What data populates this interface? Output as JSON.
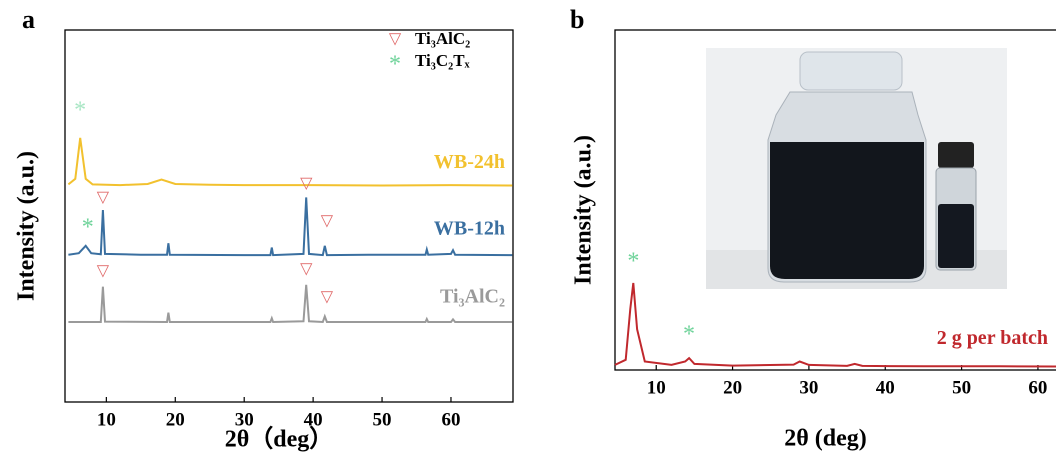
{
  "chart_data": [
    {
      "type": "line",
      "panel": "a",
      "ylabel": "Intensity (a.u.)",
      "xlabel": "2θ（deg）",
      "xlim": [
        4,
        69
      ],
      "ylim": [
        0,
        100
      ],
      "xticks": [
        10,
        20,
        30,
        40,
        50,
        60
      ],
      "legend": [
        {
          "symbol": "▽",
          "label": "Ti₃AlC₂",
          "color": "#e06a6a"
        },
        {
          "symbol": "*",
          "label": "Ti₃C₂Tₓ",
          "color": "#6fd39a"
        }
      ],
      "series": [
        {
          "name": "WB-24h",
          "color": "#f2c12e",
          "x": [
            4.5,
            5.5,
            6.2,
            7,
            8,
            12,
            16,
            18,
            20,
            25,
            30,
            40,
            50,
            60,
            68.9
          ],
          "values": [
            58.5,
            60,
            71,
            60,
            58.5,
            58.3,
            58.6,
            59.8,
            58.6,
            58.4,
            58.3,
            58.3,
            58.2,
            58.3,
            58.2
          ]
        },
        {
          "name": "WB-12h",
          "color": "#3a6fa0",
          "x": [
            4.5,
            6,
            7,
            7.8,
            9.2,
            9.5,
            9.8,
            15,
            18.8,
            19,
            19.2,
            30,
            33.8,
            34,
            34.2,
            38.6,
            39,
            39.4,
            41.4,
            41.7,
            42,
            48,
            56.3,
            56.5,
            56.7,
            60,
            60.3,
            60.6,
            68.9
          ],
          "values": [
            39.6,
            40,
            42,
            40,
            39.7,
            51.6,
            39.8,
            39.6,
            39.6,
            42.7,
            39.6,
            39.5,
            39.5,
            41.5,
            39.5,
            39.8,
            55,
            39.8,
            39.5,
            42,
            39.5,
            39.6,
            39.6,
            41,
            39.6,
            39.8,
            40.8,
            39.6,
            39.5
          ]
        },
        {
          "name": "Ti₃AlC₂",
          "color": "#9a9a9a",
          "x": [
            4.5,
            9.2,
            9.5,
            9.8,
            18.8,
            19,
            19.2,
            33.8,
            34,
            34.2,
            38.6,
            39,
            39.4,
            41.4,
            41.7,
            42,
            56.3,
            56.5,
            56.7,
            60,
            60.3,
            60.6,
            68.9
          ],
          "values": [
            21.5,
            21.5,
            31,
            21.6,
            21.5,
            24,
            21.5,
            21.5,
            22.5,
            21.5,
            21.7,
            31.5,
            21.7,
            21.5,
            23,
            21.5,
            21.5,
            22.3,
            21.5,
            21.5,
            22.2,
            21.5,
            21.5
          ]
        }
      ],
      "annotations": [
        {
          "symbol": "*",
          "x": 6.2,
          "y": 78,
          "color": "#a8e6c4"
        },
        {
          "symbol": "*",
          "x": 7.3,
          "y": 46.5,
          "color": "#6fd39a"
        },
        {
          "symbol": "▽",
          "x": 9.5,
          "y": 54.8,
          "color": "#e06a6a"
        },
        {
          "symbol": "▽",
          "x": 39,
          "y": 58.5,
          "color": "#e06a6a"
        },
        {
          "symbol": "▽",
          "x": 42,
          "y": 48.5,
          "color": "#e06a6a"
        },
        {
          "symbol": "▽",
          "x": 9.5,
          "y": 35,
          "color": "#e06a6a"
        },
        {
          "symbol": "▽",
          "x": 39,
          "y": 35.5,
          "color": "#e06a6a"
        },
        {
          "symbol": "▽",
          "x": 42,
          "y": 28,
          "color": "#e06a6a"
        }
      ]
    },
    {
      "type": "line",
      "panel": "b",
      "ylabel": "Intensity (a.u.)",
      "xlabel": "2θ (deg)",
      "xlim": [
        4.6,
        64.2
      ],
      "ylim": [
        0,
        100
      ],
      "xticks": [
        10,
        20,
        30,
        40,
        50,
        60
      ],
      "series": [
        {
          "name": "2 g per batch",
          "color": "#c0282d",
          "x": [
            4.6,
            6,
            6.6,
            7,
            7.5,
            8.5,
            12,
            13.8,
            14.3,
            15,
            20,
            28,
            28.8,
            30,
            35,
            36,
            37,
            45,
            55,
            64.2
          ],
          "values": [
            1.5,
            3,
            18,
            25.6,
            12,
            2.5,
            1.5,
            2.5,
            3.5,
            1.8,
            1.3,
            1.6,
            2.5,
            1.5,
            1.2,
            1.8,
            1.2,
            1.1,
            1.1,
            1
          ]
        }
      ],
      "annotations": [
        {
          "symbol": "*",
          "x": 7,
          "y": 31.5,
          "color": "#6fd39a"
        },
        {
          "symbol": "*",
          "x": 14.3,
          "y": 10,
          "color": "#6fd39a"
        }
      ]
    }
  ]
}
